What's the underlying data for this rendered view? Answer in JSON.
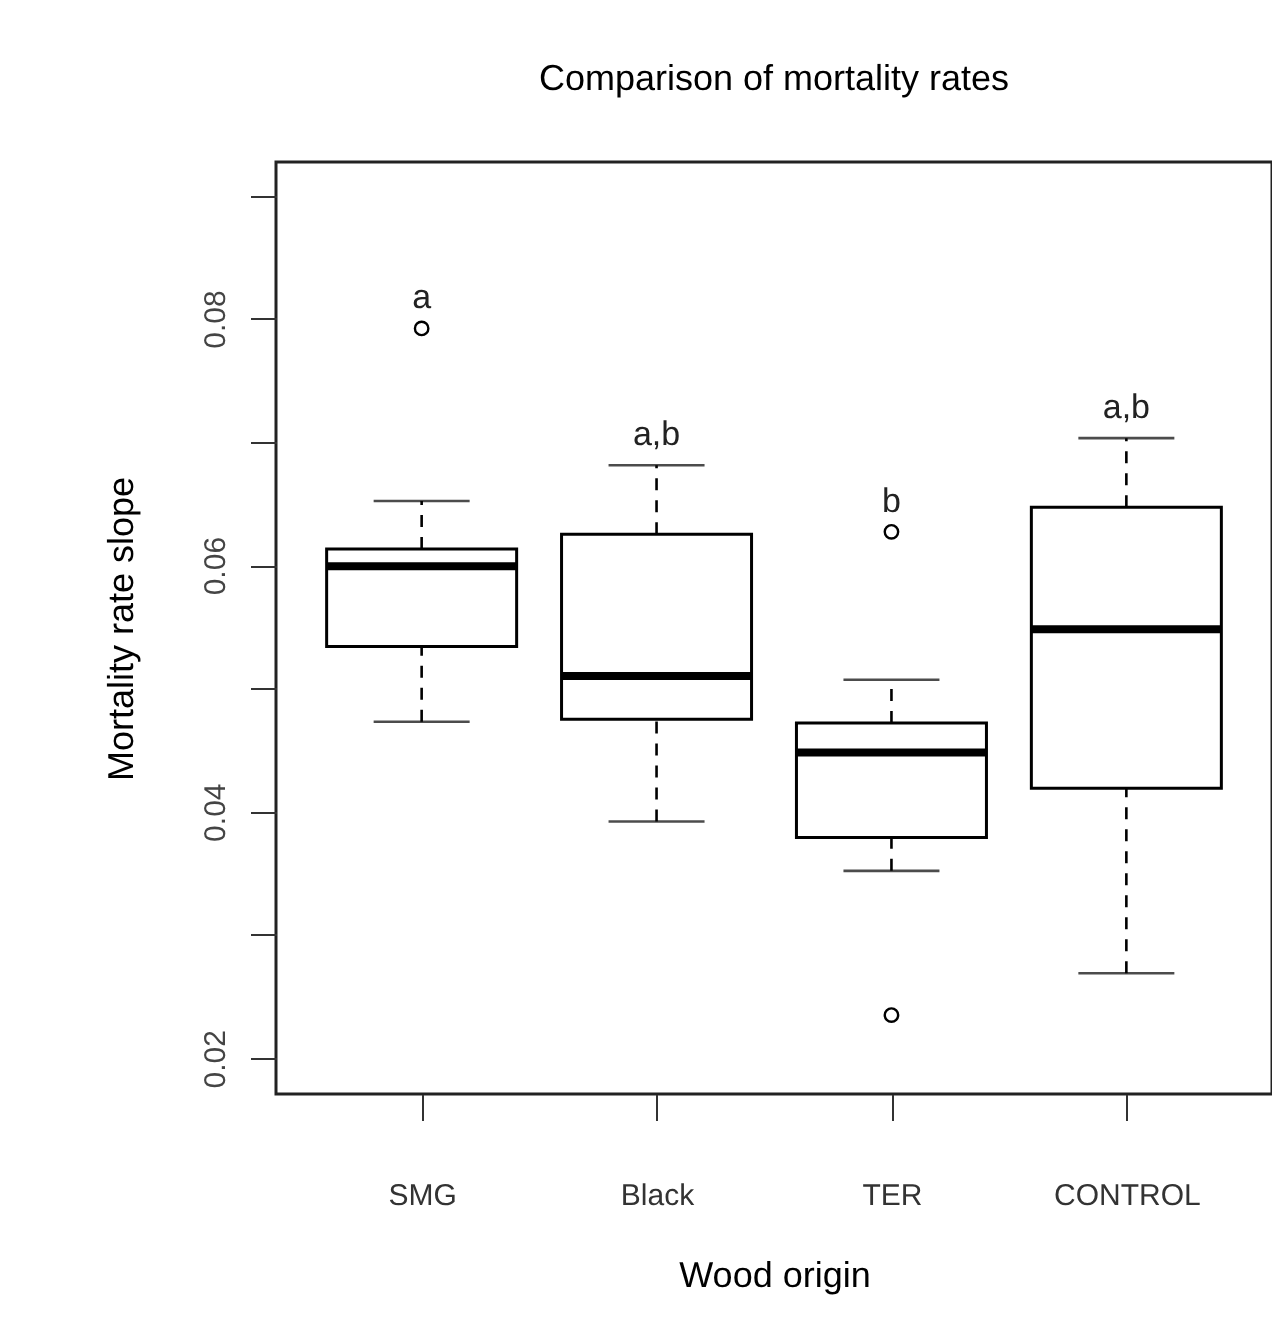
{
  "chart_data": {
    "type": "box",
    "title": "Comparison of mortality rates",
    "xlabel": "Wood origin",
    "ylabel": "Mortality rate slope",
    "categories": [
      "SMG",
      "Black",
      "TER",
      "CONTROL"
    ],
    "boxes": [
      {
        "low": 0.0473,
        "q1": 0.0534,
        "median": 0.0599,
        "q3": 0.0613,
        "high": 0.0652,
        "outliers": [
          0.0792
        ]
      },
      {
        "low": 0.0392,
        "q1": 0.0475,
        "median": 0.051,
        "q3": 0.0625,
        "high": 0.0681
      },
      {
        "low": 0.0352,
        "q1": 0.0379,
        "median": 0.0448,
        "q3": 0.0472,
        "high": 0.0507,
        "outliers": [
          0.0627,
          0.0235
        ]
      },
      {
        "low": 0.0269,
        "q1": 0.0419,
        "median": 0.0548,
        "q3": 0.0647,
        "high": 0.0703
      }
    ],
    "ylim": [
      0.0171,
      0.0927
    ],
    "yticks": [
      0.02,
      {
        "value": 0.03,
        "label": null
      },
      0.04,
      {
        "value": 0.05,
        "label": null
      },
      0.06,
      {
        "value": 0.07,
        "label": null
      },
      0.08,
      {
        "value": 0.09,
        "label": null
      }
    ],
    "annotations": [
      "a",
      "a,b",
      "b",
      "a,b"
    ],
    "grid": false
  }
}
